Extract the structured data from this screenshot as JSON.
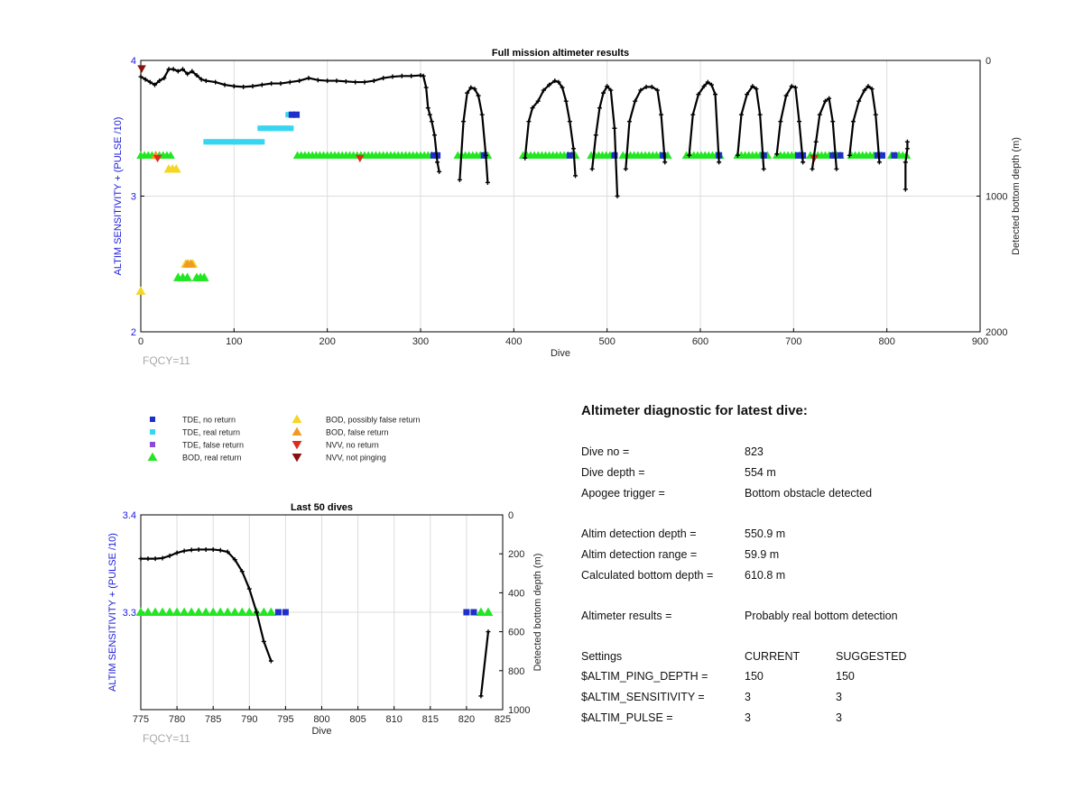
{
  "chart_data": [
    {
      "type": "scatter",
      "title": "Full mission altimeter results",
      "xlabel": "Dive",
      "ylabel": "ALTIM SENSITIVITY + (PULSE /10)",
      "ylabel_right": "Detected bottom depth (m)",
      "xlim": [
        0,
        900
      ],
      "ylim": [
        2,
        4
      ],
      "ylim_right": [
        2000,
        0
      ],
      "x_ticks": [
        0,
        100,
        200,
        300,
        400,
        500,
        600,
        700,
        800,
        900
      ],
      "y_ticks": [
        2,
        3,
        4
      ],
      "y_ticks_right": [
        0,
        1000,
        2000
      ],
      "grid": true,
      "note": "FQCY=11",
      "markers": [
        {
          "series": "BOD, real return",
          "segments": [
            [
              0,
              32
            ],
            [
              168,
              318
            ],
            [
              340,
              372
            ],
            [
              410,
              468
            ],
            [
              483,
              510
            ],
            [
              517,
              565
            ],
            [
              585,
              622
            ],
            [
              640,
              672
            ],
            [
              682,
              710
            ],
            [
              718,
              750
            ],
            [
              762,
              795
            ],
            [
              805,
              822
            ]
          ],
          "y": 3.3
        },
        {
          "series": "TDE, no return",
          "points": [
            [
              314,
              3.3
            ],
            [
              318,
              3.3
            ],
            [
              368,
              3.3
            ],
            [
              460,
              3.3
            ],
            [
              508,
              3.3
            ],
            [
              560,
              3.3
            ],
            [
              620,
              3.3
            ],
            [
              668,
              3.3
            ],
            [
              705,
              3.3
            ],
            [
              710,
              3.3
            ],
            [
              742,
              3.3
            ],
            [
              750,
              3.3
            ],
            [
              790,
              3.3
            ],
            [
              795,
              3.3
            ],
            [
              808,
              3.3
            ],
            [
              162,
              3.6
            ],
            [
              167,
              3.6
            ]
          ]
        },
        {
          "series": "TDE, real return",
          "segments": [
            [
              70,
              130
            ],
            [
              128,
              162
            ],
            [
              158,
              165
            ]
          ],
          "y_values": [
            3.4,
            3.5,
            3.6
          ]
        },
        {
          "series": "BOD, possibly false return",
          "points": [
            [
              0,
              2.3
            ],
            [
              30,
              3.2
            ],
            [
              34,
              3.2
            ],
            [
              38,
              3.2
            ],
            [
              48,
              2.5
            ],
            [
              52,
              2.5
            ],
            [
              56,
              2.5
            ]
          ]
        },
        {
          "series": "BOD, false return",
          "points": [
            [
              16,
              3.3
            ],
            [
              50,
              2.5
            ],
            [
              54,
              2.5
            ]
          ]
        },
        {
          "series": "NVV, no return",
          "points": [
            [
              18,
              3.28
            ],
            [
              235,
              3.28
            ],
            [
              722,
              3.28
            ]
          ]
        },
        {
          "series": "NVV, not pinging",
          "points": [
            [
              1,
              3.94
            ]
          ]
        },
        {
          "series": "BOD, real return (low)",
          "points": [
            [
              40,
              2.4
            ],
            [
              45,
              2.4
            ],
            [
              50,
              2.4
            ],
            [
              60,
              2.4
            ],
            [
              64,
              2.4
            ],
            [
              68,
              2.4
            ]
          ]
        }
      ],
      "depth_line": {
        "axis": "right",
        "x": [
          0,
          5,
          10,
          15,
          20,
          25,
          30,
          35,
          40,
          45,
          50,
          55,
          60,
          65,
          70,
          80,
          90,
          100,
          110,
          120,
          130,
          140,
          150,
          160,
          170,
          180,
          190,
          200,
          210,
          220,
          230,
          240,
          250,
          260,
          270,
          280,
          290,
          300,
          303,
          306,
          308,
          310,
          312,
          315,
          318,
          320
        ],
        "y": [
          120,
          140,
          160,
          180,
          150,
          130,
          65,
          65,
          80,
          65,
          100,
          80,
          110,
          140,
          150,
          160,
          180,
          190,
          195,
          190,
          180,
          170,
          170,
          160,
          150,
          130,
          145,
          150,
          150,
          155,
          160,
          160,
          150,
          130,
          120,
          115,
          115,
          110,
          115,
          200,
          350,
          400,
          450,
          550,
          750,
          820
        ],
        "dives": [
          {
            "x": [
              342,
              346,
              350,
              354,
              358,
              362,
              366,
              370,
              372
            ],
            "y": [
              880,
              450,
              240,
              200,
              210,
              260,
              400,
              700,
              900
            ]
          },
          {
            "x": [
              412,
              416,
              420,
              426,
              432,
              438,
              444,
              448,
              452,
              456,
              460,
              464,
              466
            ],
            "y": [
              720,
              450,
              350,
              300,
              220,
              180,
              150,
              160,
              200,
              300,
              450,
              650,
              850
            ]
          },
          {
            "x": [
              484,
              488,
              492,
              496,
              500,
              504,
              508,
              511
            ],
            "y": [
              800,
              550,
              350,
              240,
              190,
              220,
              500,
              1000
            ]
          },
          {
            "x": [
              520,
              524,
              530,
              536,
              542,
              548,
              554,
              558,
              562
            ],
            "y": [
              800,
              450,
              300,
              220,
              195,
              195,
              220,
              400,
              750
            ]
          },
          {
            "x": [
              588,
              592,
              598,
              604,
              608,
              612,
              616,
              620
            ],
            "y": [
              700,
              400,
              250,
              190,
              160,
              180,
              250,
              750
            ]
          },
          {
            "x": [
              640,
              644,
              650,
              656,
              660,
              664,
              668
            ],
            "y": [
              700,
              400,
              250,
              190,
              210,
              400,
              800
            ]
          },
          {
            "x": [
              682,
              686,
              692,
              698,
              702,
              706,
              710
            ],
            "y": [
              690,
              450,
              260,
              190,
              200,
              450,
              750
            ]
          },
          {
            "x": [
              720,
              724,
              728,
              734,
              738,
              742,
              746
            ],
            "y": [
              800,
              600,
              400,
              300,
              280,
              450,
              800
            ]
          },
          {
            "x": [
              760,
              764,
              770,
              776,
              780,
              784,
              788,
              792
            ],
            "y": [
              700,
              450,
              300,
              220,
              190,
              210,
              400,
              750
            ]
          },
          {
            "x": [
              820,
              820,
              822,
              822
            ],
            "y": [
              950,
              750,
              650,
              600
            ]
          }
        ]
      }
    },
    {
      "type": "scatter",
      "title": "Last 50 dives",
      "xlabel": "Dive",
      "ylabel": "ALTIM SENSITIVITY + (PULSE /10)",
      "ylabel_right": "Detected bottom depth (m)",
      "xlim": [
        775,
        825
      ],
      "ylim": [
        3.2,
        3.4
      ],
      "ylim_right": [
        1000,
        0
      ],
      "x_ticks": [
        775,
        780,
        785,
        790,
        795,
        800,
        805,
        810,
        815,
        820,
        825
      ],
      "y_ticks": [
        3.3,
        3.4
      ],
      "y_ticks_right": [
        0,
        200,
        400,
        600,
        800,
        1000
      ],
      "grid": true,
      "note": "FQCY=11",
      "markers": [
        {
          "series": "BOD, real return",
          "x": [
            775,
            776,
            777,
            778,
            779,
            780,
            781,
            782,
            783,
            784,
            785,
            786,
            787,
            788,
            789,
            790,
            791,
            792,
            793,
            822,
            823
          ],
          "y": 3.3
        },
        {
          "series": "TDE, no return",
          "x": [
            794,
            795,
            820,
            821
          ],
          "y": 3.3
        }
      ],
      "depth_line": {
        "axis": "right",
        "x": [
          775,
          776,
          777,
          778,
          779,
          780,
          781,
          782,
          783,
          784,
          785,
          786,
          787,
          788,
          789,
          790,
          791,
          792,
          793
        ],
        "y": [
          225,
          225,
          225,
          222,
          210,
          195,
          185,
          180,
          178,
          178,
          178,
          182,
          190,
          230,
          290,
          380,
          500,
          650,
          750
        ]
      },
      "depth_line_2": {
        "x": [
          822,
          823
        ],
        "y": [
          930,
          600
        ]
      }
    }
  ],
  "legend": {
    "col1": [
      {
        "label": "TDE, no return",
        "shape": "square",
        "color": "#1f2fc9"
      },
      {
        "label": "TDE, real return",
        "shape": "square",
        "color": "#36d6f0"
      },
      {
        "label": "TDE, false return",
        "shape": "square",
        "color": "#8a4cd6"
      },
      {
        "label": "BOD, real return",
        "shape": "triangle-up",
        "color": "#22e622"
      }
    ],
    "col2": [
      {
        "label": "BOD, possibly false return",
        "shape": "triangle-up",
        "color": "#f5d623"
      },
      {
        "label": "BOD, false return",
        "shape": "triangle-up",
        "color": "#f29a1e"
      },
      {
        "label": "NVV, no return",
        "shape": "triangle-down",
        "color": "#e02a1e"
      },
      {
        "label": "NVV, not pinging",
        "shape": "triangle-down",
        "color": "#8a1010"
      }
    ]
  },
  "diagnostic": {
    "title": "Altimeter diagnostic for latest dive:",
    "rows": [
      {
        "label": "Dive no =",
        "value": "823"
      },
      {
        "label": "Dive depth =",
        "value": "554 m"
      },
      {
        "label": "Apogee trigger =",
        "value": "Bottom obstacle detected"
      },
      {
        "label": "Altim detection depth =",
        "value": "550.9 m"
      },
      {
        "label": "Altim detection range =",
        "value": "59.9 m"
      },
      {
        "label": "Calculated bottom depth =",
        "value": "610.8 m"
      },
      {
        "label": "Altimeter results =",
        "value": "Probably real bottom detection"
      }
    ],
    "settings_header": {
      "label": "Settings",
      "current": "CURRENT",
      "suggested": "SUGGESTED"
    },
    "settings": [
      {
        "label": "$ALTIM_PING_DEPTH =",
        "current": "150",
        "suggested": "150"
      },
      {
        "label": "$ALTIM_SENSITIVITY =",
        "current": "3",
        "suggested": "3"
      },
      {
        "label": "$ALTIM_PULSE =",
        "current": "3",
        "suggested": "3"
      }
    ]
  },
  "colors": {
    "bod_real": "#22e622",
    "tde_no": "#1f2fc9",
    "tde_real": "#36d6f0",
    "possibly_false": "#f5d623",
    "false_return": "#f29a1e",
    "nvv_no": "#e02a1e",
    "nvv_not": "#8a1010",
    "axis_blue": "#1a1adb"
  }
}
